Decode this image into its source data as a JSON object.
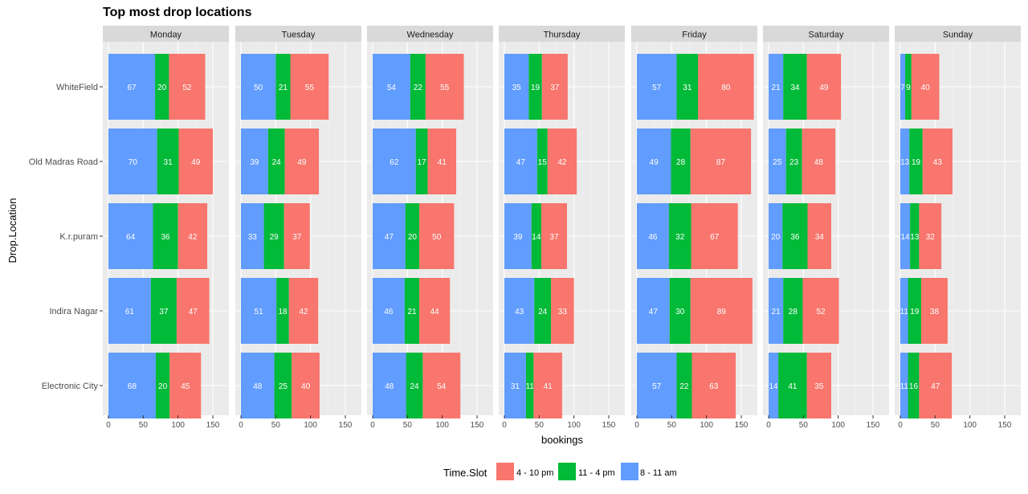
{
  "chart_data": {
    "type": "bar",
    "orientation": "horizontal",
    "stacked": true,
    "faceted": true,
    "title": "Top most drop locations",
    "xlabel": "bookings",
    "ylabel": "Drop.Location",
    "xlim": [
      0,
      165
    ],
    "xticks": [
      0,
      50,
      100,
      150
    ],
    "grid": true,
    "legend": {
      "title": "Time.Slot",
      "position": "bottom",
      "items": [
        {
          "name": "4 - 10 pm",
          "color": "#F8766D"
        },
        {
          "name": "11 - 4 pm",
          "color": "#00BA38"
        },
        {
          "name": "8 - 11 am",
          "color": "#619CFF"
        }
      ]
    },
    "categories": [
      "WhiteField",
      "Old Madras Road",
      "K.r.puram",
      "Indira Nagar",
      "Electronic City"
    ],
    "stack_order": [
      "8 - 11 am",
      "11 - 4 pm",
      "4 - 10 pm"
    ],
    "facets": [
      {
        "name": "Monday",
        "values": {
          "8 - 11 am": [
            67,
            70,
            64,
            61,
            68
          ],
          "11 - 4 pm": [
            20,
            31,
            36,
            37,
            20
          ],
          "4 - 10 pm": [
            52,
            49,
            42,
            47,
            45
          ]
        }
      },
      {
        "name": "Tuesday",
        "values": {
          "8 - 11 am": [
            50,
            39,
            33,
            51,
            48
          ],
          "11 - 4 pm": [
            21,
            24,
            29,
            18,
            25
          ],
          "4 - 10 pm": [
            55,
            49,
            37,
            42,
            40
          ]
        }
      },
      {
        "name": "Wednesday",
        "values": {
          "8 - 11 am": [
            54,
            62,
            47,
            46,
            48
          ],
          "11 - 4 pm": [
            22,
            17,
            20,
            21,
            24
          ],
          "4 - 10 pm": [
            55,
            41,
            50,
            44,
            54
          ]
        }
      },
      {
        "name": "Thursday",
        "values": {
          "8 - 11 am": [
            35,
            47,
            39,
            43,
            31
          ],
          "11 - 4 pm": [
            19,
            15,
            14,
            24,
            11
          ],
          "4 - 10 pm": [
            37,
            42,
            37,
            33,
            41
          ]
        }
      },
      {
        "name": "Friday",
        "values": {
          "8 - 11 am": [
            57,
            49,
            46,
            47,
            57
          ],
          "11 - 4 pm": [
            31,
            28,
            32,
            30,
            22
          ],
          "4 - 10 pm": [
            80,
            87,
            67,
            89,
            63
          ]
        }
      },
      {
        "name": "Saturday",
        "values": {
          "8 - 11 am": [
            21,
            25,
            20,
            21,
            14
          ],
          "11 - 4 pm": [
            34,
            23,
            36,
            28,
            41
          ],
          "4 - 10 pm": [
            49,
            48,
            34,
            52,
            35
          ]
        }
      },
      {
        "name": "Sunday",
        "values": {
          "8 - 11 am": [
            7,
            13,
            14,
            11,
            11
          ],
          "11 - 4 pm": [
            9,
            19,
            13,
            19,
            16
          ],
          "4 - 10 pm": [
            40,
            43,
            32,
            38,
            47
          ]
        }
      }
    ]
  }
}
